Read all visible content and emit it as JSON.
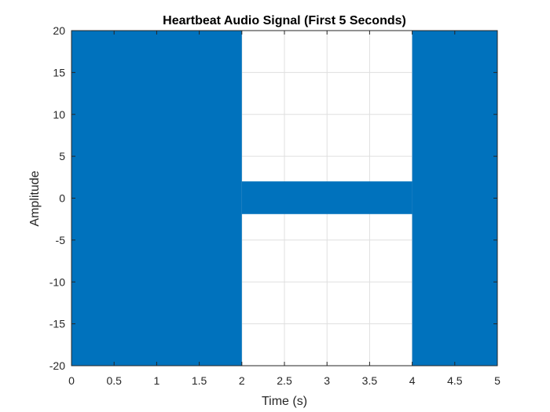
{
  "chart_data": {
    "type": "area",
    "title": "Heartbeat Audio Signal (First 5 Seconds)",
    "xlabel": "Time (s)",
    "ylabel": "Amplitude",
    "xlim": [
      0,
      5
    ],
    "ylim": [
      -20,
      20
    ],
    "xticks": [
      "0",
      "0.5",
      "1",
      "1.5",
      "2",
      "2.5",
      "3",
      "3.5",
      "4",
      "4.5",
      "5"
    ],
    "yticks": [
      "20",
      "15",
      "10",
      "5",
      "0",
      "-5",
      "-10",
      "-15",
      "-20"
    ],
    "grid": true,
    "series_color": "#0072BD",
    "series": [
      {
        "segments": [
          {
            "x": [
              0,
              2
            ],
            "y_min": -20,
            "y_max": 20
          },
          {
            "x": [
              2,
              4
            ],
            "y_min": -1.9,
            "y_max": 2.0
          },
          {
            "x": [
              4,
              5
            ],
            "y_min": -20,
            "y_max": 20
          }
        ]
      }
    ]
  }
}
